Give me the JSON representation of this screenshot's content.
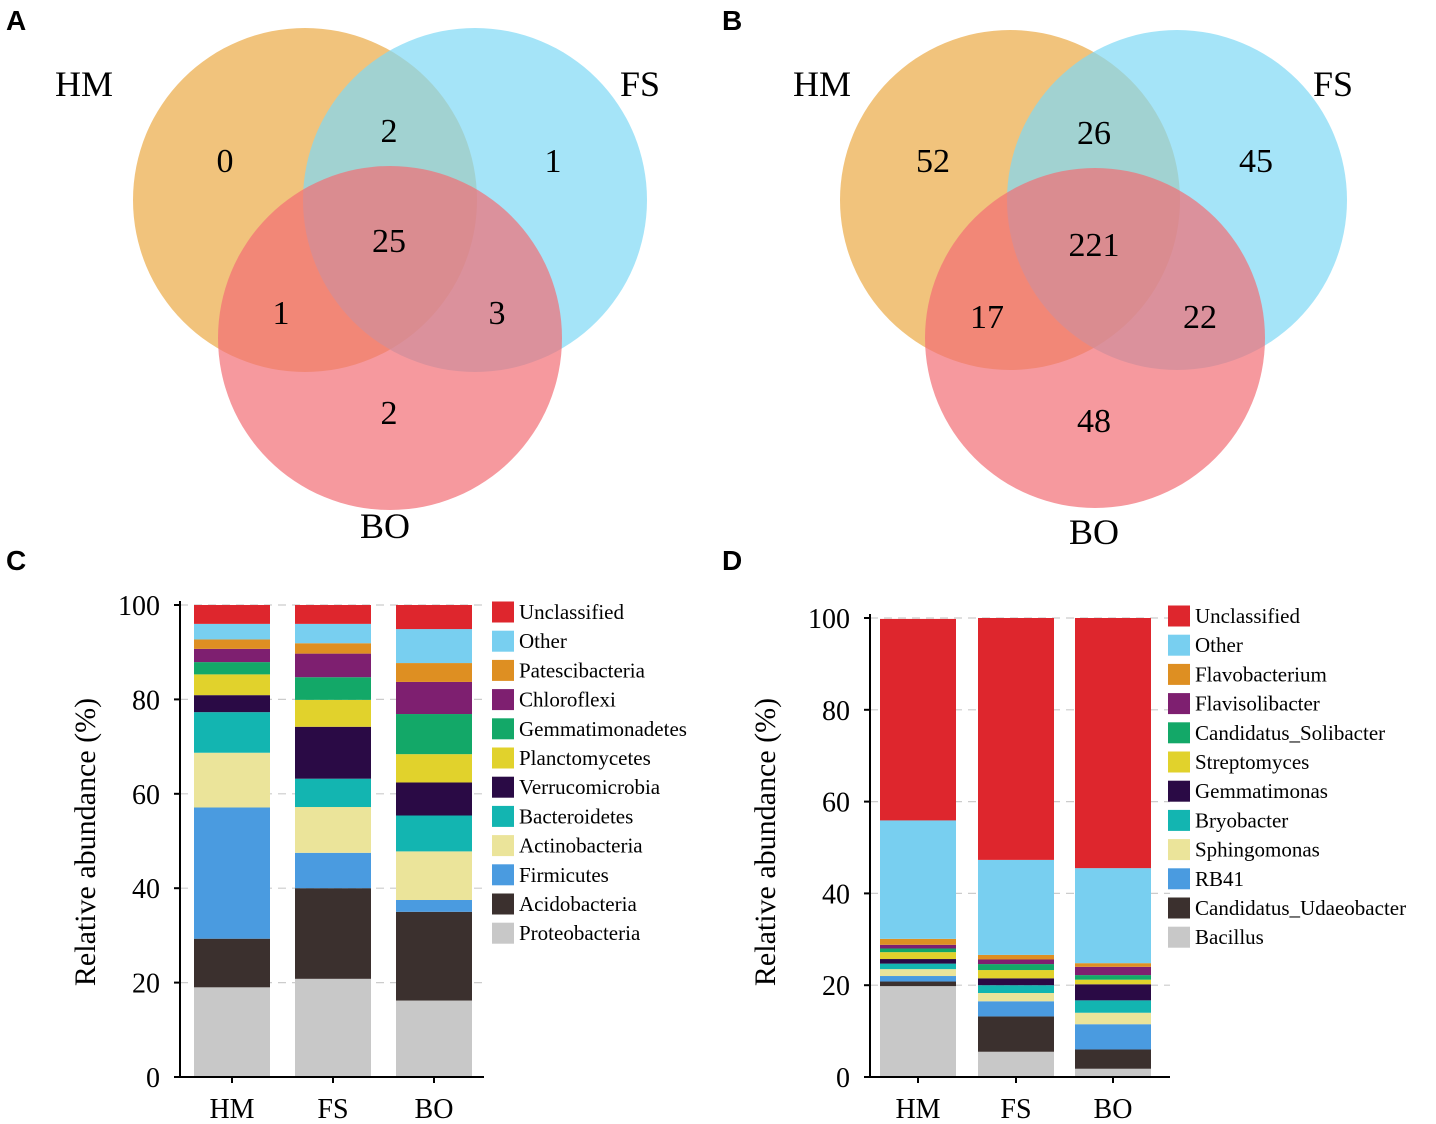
{
  "panels": {
    "a": {
      "letter": "A"
    },
    "b": {
      "letter": "B"
    },
    "c": {
      "letter": "C"
    },
    "d": {
      "letter": "D"
    }
  },
  "venn": [
    {
      "panel": "A",
      "labels": {
        "hm": "HM",
        "fs": "FS",
        "bo": "BO"
      },
      "regions": {
        "hm_only": "0",
        "fs_only": "1",
        "bo_only": "2",
        "hm_fs": "2",
        "hm_bo": "1",
        "fs_bo": "3",
        "all": "25"
      },
      "colors": {
        "hm": "#efb865",
        "fs": "#7fd9f5",
        "bo": "#f26d75"
      }
    },
    {
      "panel": "B",
      "labels": {
        "hm": "HM",
        "fs": "FS",
        "bo": "BO"
      },
      "regions": {
        "hm_only": "52",
        "fs_only": "45",
        "bo_only": "48",
        "hm_fs": "26",
        "hm_bo": "17",
        "fs_bo": "22",
        "all": "221"
      },
      "colors": {
        "hm": "#efb865",
        "fs": "#7fd9f5",
        "bo": "#f26d75"
      }
    }
  ],
  "chart_data": [
    {
      "panel": "C",
      "type": "bar",
      "stacked": true,
      "title": "",
      "xlabel": "",
      "ylabel": "Relative abundance (%)",
      "ylim": [
        0,
        100
      ],
      "yticks": [
        "0",
        "20",
        "40",
        "60",
        "80",
        "100"
      ],
      "categories": [
        "HM",
        "FS",
        "BO"
      ],
      "series": [
        {
          "name": "Proteobacteria",
          "color": "#c8c8c8",
          "values": [
            19,
            20.8,
            16.2
          ]
        },
        {
          "name": "Acidobacteria",
          "color": "#3b302e",
          "values": [
            10.3,
            19.2,
            18.8
          ]
        },
        {
          "name": "Firmicutes",
          "color": "#4a9be0",
          "values": [
            27.8,
            7.5,
            2.5
          ]
        },
        {
          "name": "Actinobacteria",
          "color": "#ebe49a",
          "values": [
            11.6,
            9.7,
            10.3
          ]
        },
        {
          "name": "Bacteroidetes",
          "color": "#13b5b1",
          "values": [
            8.6,
            6.0,
            7.6
          ]
        },
        {
          "name": "Verrucomicrobia",
          "color": "#2a0a45",
          "values": [
            3.6,
            11.0,
            7.0
          ]
        },
        {
          "name": "Planctomycetes",
          "color": "#e1d22c",
          "values": [
            4.4,
            5.7,
            6.0
          ]
        },
        {
          "name": "Gemmatimonadetes",
          "color": "#13a868",
          "values": [
            2.6,
            4.8,
            8.5
          ]
        },
        {
          "name": "Chloroflexi",
          "color": "#7e1f70",
          "values": [
            2.8,
            5.0,
            6.8
          ]
        },
        {
          "name": "Patescibacteria",
          "color": "#de8f22",
          "values": [
            2.0,
            2.2,
            4.0
          ]
        },
        {
          "name": "Other",
          "color": "#78cff0",
          "values": [
            3.3,
            4.1,
            7.2
          ]
        },
        {
          "name": "Unclassified",
          "color": "#de262d",
          "values": [
            4.0,
            4.0,
            5.1
          ]
        }
      ]
    },
    {
      "panel": "D",
      "type": "bar",
      "stacked": true,
      "title": "",
      "xlabel": "",
      "ylabel": "Relative abundance (%)",
      "ylim": [
        0,
        100
      ],
      "yticks": [
        "0",
        "20",
        "40",
        "60",
        "80",
        "100"
      ],
      "categories": [
        "HM",
        "FS",
        "BO"
      ],
      "series": [
        {
          "name": "Bacillus",
          "color": "#c8c8c8",
          "values": [
            19.8,
            5.5,
            1.8
          ]
        },
        {
          "name": "Candidatus_Udaeobacter",
          "color": "#3b302e",
          "values": [
            1.0,
            7.7,
            4.2
          ]
        },
        {
          "name": "RB41",
          "color": "#4a9be0",
          "values": [
            1.2,
            3.3,
            5.5
          ]
        },
        {
          "name": "Sphingomonas",
          "color": "#ebe49a",
          "values": [
            1.5,
            1.8,
            2.5
          ]
        },
        {
          "name": "Bryobacter",
          "color": "#13b5b1",
          "values": [
            1.2,
            1.7,
            2.7
          ]
        },
        {
          "name": "Gemmatimonas",
          "color": "#2a0a45",
          "values": [
            1.0,
            1.5,
            3.5
          ]
        },
        {
          "name": "Streptomyces",
          "color": "#e1d22c",
          "values": [
            1.5,
            1.8,
            1.0
          ]
        },
        {
          "name": "Candidatus_Solibacter",
          "color": "#13a868",
          "values": [
            0.8,
            1.3,
            1.0
          ]
        },
        {
          "name": "Flavisolibacter",
          "color": "#7e1f70",
          "values": [
            0.8,
            1.0,
            1.8
          ]
        },
        {
          "name": "Flavobacterium",
          "color": "#de8f22",
          "values": [
            1.3,
            1.0,
            0.8
          ]
        },
        {
          "name": "Other",
          "color": "#78cff0",
          "values": [
            25.8,
            20.7,
            20.7
          ]
        },
        {
          "name": "Unclassified",
          "color": "#de262d",
          "values": [
            43.9,
            52.7,
            54.5
          ]
        }
      ]
    }
  ]
}
